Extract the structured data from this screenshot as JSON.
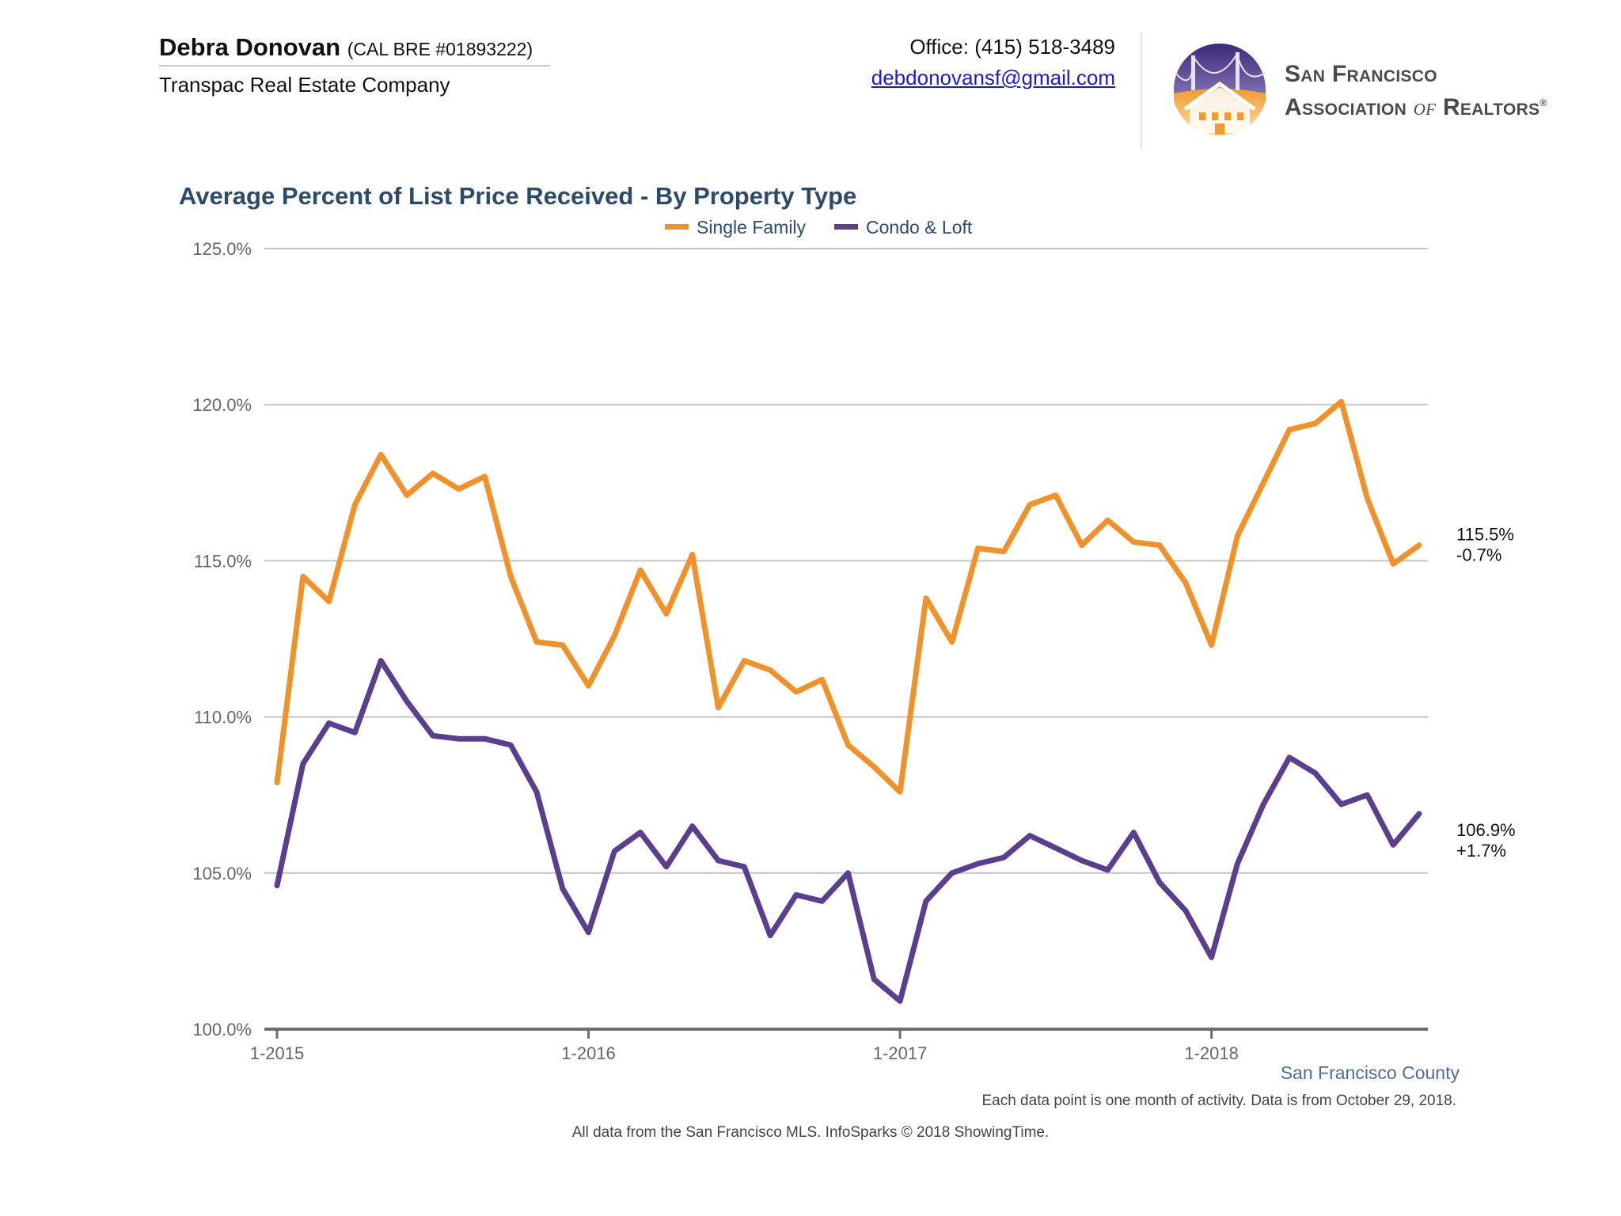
{
  "header": {
    "agent_name": "Debra Donovan",
    "agent_license": "(CAL BRE #01893222)",
    "company": "Transpac Real Estate Company",
    "office": "Office: (415) 518-3489",
    "email": "debdonovansf@gmail.com",
    "logo_line1": "San Francisco",
    "logo_line2_a": "Association ",
    "logo_line2_of": "of",
    "logo_line2_b": " Realtors",
    "logo_mark": "®",
    "logo_icon": "golden-gate-house-icon"
  },
  "chart_data": {
    "type": "line",
    "title": "Average Percent of List Price Received - By Property Type",
    "ylim": [
      100,
      125
    ],
    "yticks": [
      "100.0%",
      "105.0%",
      "110.0%",
      "115.0%",
      "120.0%",
      "125.0%"
    ],
    "ytick_values": [
      100,
      105,
      110,
      115,
      120,
      125
    ],
    "xticks": [
      "1-2015",
      "1-2016",
      "1-2017",
      "1-2018"
    ],
    "xtick_index": [
      0,
      12,
      24,
      36
    ],
    "legend_position": "top-center",
    "grid": true,
    "x": [
      "1-2015",
      "2-2015",
      "3-2015",
      "4-2015",
      "5-2015",
      "6-2015",
      "7-2015",
      "8-2015",
      "9-2015",
      "10-2015",
      "11-2015",
      "12-2015",
      "1-2016",
      "2-2016",
      "3-2016",
      "4-2016",
      "5-2016",
      "6-2016",
      "7-2016",
      "8-2016",
      "9-2016",
      "10-2016",
      "11-2016",
      "12-2016",
      "1-2017",
      "2-2017",
      "3-2017",
      "4-2017",
      "5-2017",
      "6-2017",
      "7-2017",
      "8-2017",
      "9-2017",
      "10-2017",
      "11-2017",
      "12-2017",
      "1-2018",
      "2-2018",
      "3-2018",
      "4-2018",
      "5-2018",
      "6-2018",
      "7-2018",
      "8-2018",
      "9-2018"
    ],
    "series": [
      {
        "name": "Single Family",
        "color": "#f0922b",
        "values": [
          107.9,
          114.5,
          113.7,
          116.8,
          118.4,
          117.1,
          117.8,
          117.3,
          117.7,
          114.5,
          112.4,
          112.3,
          111.0,
          112.6,
          114.7,
          113.3,
          115.2,
          110.3,
          111.8,
          111.5,
          110.8,
          111.2,
          109.1,
          108.4,
          107.6,
          113.8,
          112.4,
          115.4,
          115.3,
          116.8,
          117.1,
          115.5,
          116.3,
          115.6,
          115.5,
          114.3,
          112.3,
          115.8,
          117.5,
          119.2,
          119.4,
          120.1,
          117.0,
          114.9,
          115.5
        ],
        "end_value_label": "115.5%",
        "end_change_label": "-0.7%"
      },
      {
        "name": "Condo & Loft",
        "color": "#5b3f8f",
        "values": [
          104.6,
          108.5,
          109.8,
          109.5,
          111.8,
          110.5,
          109.4,
          109.3,
          109.3,
          109.1,
          107.6,
          104.5,
          103.1,
          105.7,
          106.3,
          105.2,
          106.5,
          105.4,
          105.2,
          103.0,
          104.3,
          104.1,
          105.0,
          101.6,
          100.9,
          104.1,
          105.0,
          105.3,
          105.5,
          106.2,
          105.8,
          105.4,
          105.1,
          106.3,
          104.7,
          103.8,
          102.3,
          105.3,
          107.2,
          108.7,
          108.2,
          107.2,
          107.5,
          105.9,
          106.9
        ],
        "end_value_label": "106.9%",
        "end_change_label": "+1.7%"
      }
    ]
  },
  "footer": {
    "region": "San Francisco County",
    "note": "Each data point is one month of activity. Data is from October 29, 2018.",
    "source": "All data from the San Francisco MLS. InfoSparks © 2018 ShowingTime."
  }
}
